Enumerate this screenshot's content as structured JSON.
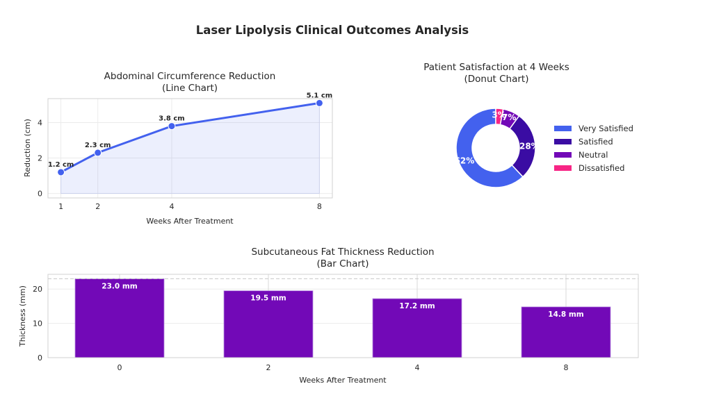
{
  "title": "Laser Lipolysis Clinical Outcomes Analysis",
  "colors": {
    "line": "#4361EE",
    "fill": "#4361EE",
    "bar": "#7209B7",
    "very_satisfied": "#4361EE",
    "satisfied": "#3A0CA3",
    "neutral": "#7209B7",
    "dissatisfied": "#F72585"
  },
  "chart_data": [
    {
      "type": "line",
      "title": "Abdominal Circumference Reduction",
      "subtitle": "(Line Chart)",
      "xlabel": "Weeks After Treatment",
      "ylabel": "Reduction (cm)",
      "x": [
        1,
        2,
        4,
        8
      ],
      "values": [
        1.2,
        2.3,
        3.8,
        5.1
      ],
      "labels": [
        "1.2 cm",
        "2.3 cm",
        "3.8 cm",
        "5.1 cm"
      ],
      "xticks": [
        "1",
        "2",
        "4",
        "8"
      ],
      "yticks": [
        "0",
        "2",
        "4"
      ],
      "xlim": [
        0.65,
        8.35
      ],
      "ylim": [
        -0.25,
        5.35
      ],
      "grid": true
    },
    {
      "type": "pie",
      "title": "Patient Satisfaction at 4 Weeks",
      "subtitle": "(Donut Chart)",
      "categories": [
        "Very Satisfied",
        "Satisfied",
        "Neutral",
        "Dissatisfied"
      ],
      "values": [
        62,
        28,
        7,
        3
      ],
      "labels": [
        "62%",
        "28%",
        "7%",
        "3%"
      ],
      "legend": "right"
    },
    {
      "type": "bar",
      "title": "Subcutaneous Fat Thickness Reduction",
      "subtitle": "(Bar Chart)",
      "xlabel": "Weeks After Treatment",
      "ylabel": "Thickness (mm)",
      "categories": [
        "0",
        "2",
        "4",
        "8"
      ],
      "values": [
        23.0,
        19.5,
        17.2,
        14.8
      ],
      "labels": [
        "23.0 mm",
        "19.5 mm",
        "17.2 mm",
        "14.8 mm"
      ],
      "yticks": [
        "0",
        "10",
        "20"
      ],
      "ylim": [
        0,
        24.3
      ],
      "reference_line": 23.0,
      "grid": true
    }
  ]
}
